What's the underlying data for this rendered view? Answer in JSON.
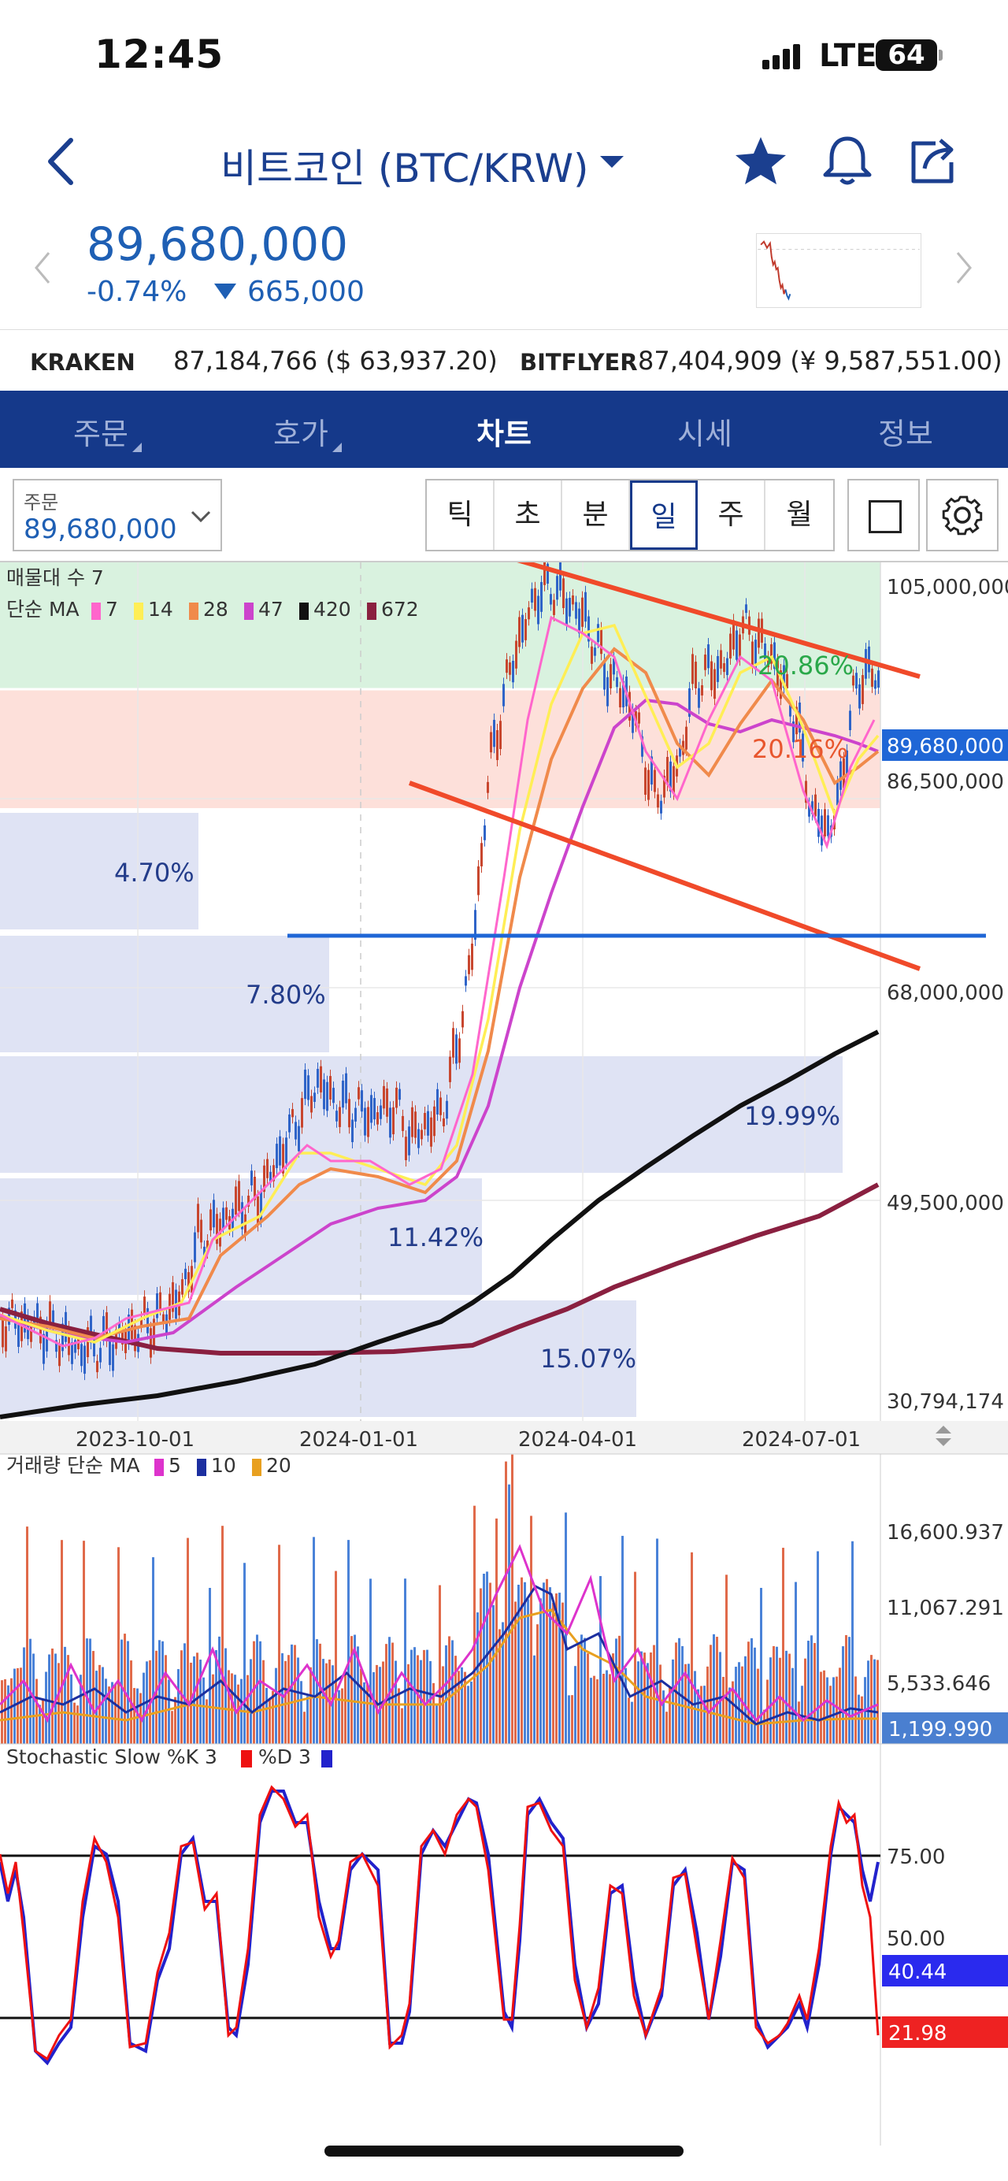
{
  "status_bar": {
    "time": "12:45",
    "network": "LTE",
    "battery": "64"
  },
  "header": {
    "title": "비트코인 (BTC/KRW)",
    "icons": [
      "back-icon",
      "star-icon",
      "bell-icon",
      "share-icon"
    ]
  },
  "price": {
    "last": "89,680,000",
    "change_pct": "-0.74%",
    "change_abs": "665,000",
    "direction": "down",
    "color": "#1e5fb4"
  },
  "exchanges": [
    {
      "name": "KRAKEN",
      "value": "87,184,766 ($ 63,937.20)"
    },
    {
      "name": "BITFLYER",
      "value": "87,404,909 (¥ 9,587,551.00)"
    }
  ],
  "tabs": [
    {
      "label": "주문",
      "active": false
    },
    {
      "label": "호가",
      "active": false
    },
    {
      "label": "차트",
      "active": true
    },
    {
      "label": "시세",
      "active": false
    },
    {
      "label": "정보",
      "active": false
    }
  ],
  "toolbar": {
    "order_label": "주문",
    "order_price": "89,680,000",
    "periods": [
      "틱",
      "초",
      "분",
      "일",
      "주",
      "월"
    ],
    "selected_period": "일"
  },
  "main_panel": {
    "title": "매물대 수 7",
    "ma_title": "단순 MA",
    "ma_legend": [
      {
        "label": "7",
        "color": "#ff66cc"
      },
      {
        "label": "14",
        "color": "#ffee55"
      },
      {
        "label": "28",
        "color": "#f08a4b"
      },
      {
        "label": "47",
        "color": "#cc44cc"
      },
      {
        "label": "420",
        "color": "#111111"
      },
      {
        "label": "672",
        "color": "#8a2040"
      }
    ],
    "y_ticks": [
      "105,000,000",
      "86,500,000",
      "68,000,000",
      "49,500,000",
      "30,794,174"
    ],
    "current_price_tag": "89,680,000",
    "x_ticks": [
      "2023-10-01",
      "2024-01-01",
      "2024-04-01",
      "2024-07-01"
    ],
    "volume_profile": [
      "20.86%",
      "20.16%",
      "4.70%",
      "7.80%",
      "19.99%",
      "11.42%",
      "15.07%"
    ],
    "colors": {
      "upper_zone": "#d9f2df",
      "lower_zone": "#fde0da",
      "profile": "#dfe3f4",
      "trendline": "#f04a2a",
      "support": "#1f66d6"
    }
  },
  "volume_panel": {
    "title": "거래량 단순 MA",
    "legend": [
      {
        "label": "5",
        "color": "#dd33cc"
      },
      {
        "label": "10",
        "color": "#1c2fa0"
      },
      {
        "label": "20",
        "color": "#e8a020"
      }
    ],
    "y_ticks": [
      "16,600.937",
      "11,067.291",
      "5,533.646"
    ],
    "current_tag": "1,199.990"
  },
  "stoch_panel": {
    "title": "Stochastic Slow %K 3",
    "d_label": "%D 3",
    "k_color": "#ee1111",
    "d_color": "#2222cc",
    "y_ticks": [
      "75.00",
      "50.00"
    ],
    "d_tag": "40.44",
    "k_tag": "21.98"
  }
}
